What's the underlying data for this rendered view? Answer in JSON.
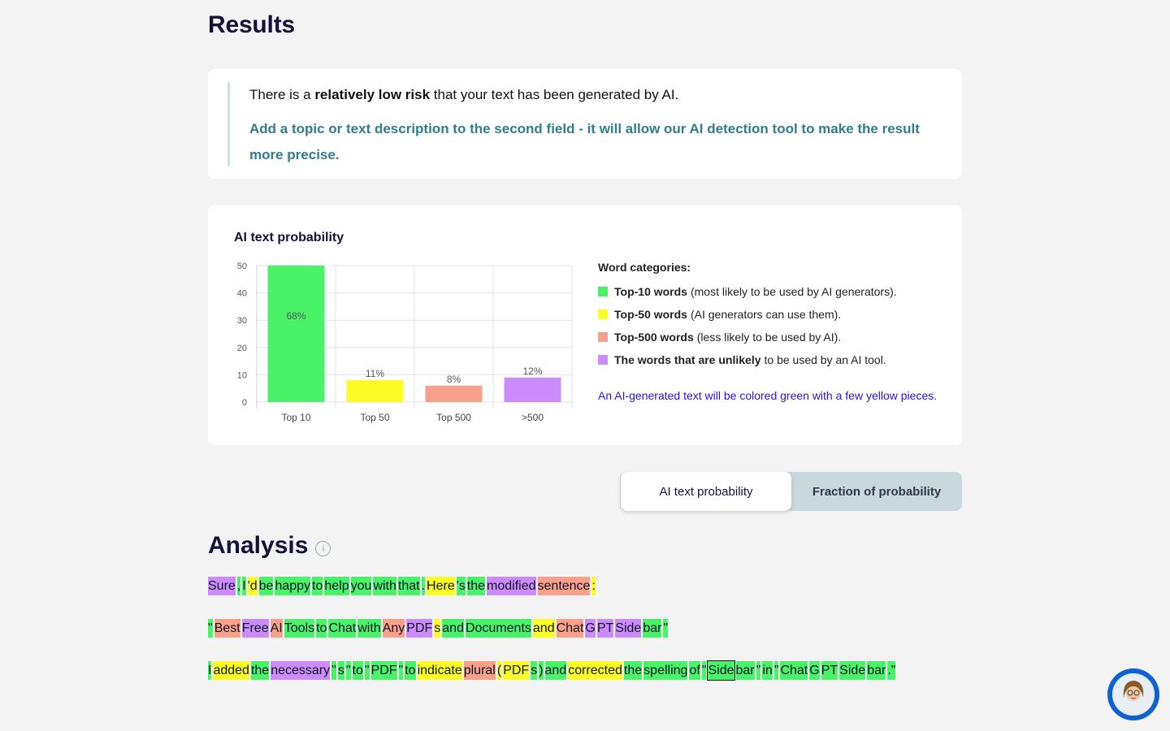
{
  "results_title": "Results",
  "risk": {
    "pre": "There is a ",
    "bold": "relatively low risk",
    "post": " that your text has been generated by AI.",
    "hint": "Add a topic or text description to the second field - it will allow our AI detection tool to make the result more precise."
  },
  "chart_data": {
    "type": "bar",
    "title": "AI text probability",
    "categories": [
      "Top 10",
      "Top 50",
      "Top 500",
      ">500"
    ],
    "values": [
      50,
      8,
      6,
      9
    ],
    "labels": [
      "68%",
      "11%",
      "8%",
      "12%"
    ],
    "colors": [
      "#4af26a",
      "#fbfb25",
      "#f9a08a",
      "#cc8bfb"
    ],
    "ylim": [
      0,
      50
    ],
    "yticks": [
      0,
      10,
      20,
      30,
      40,
      50
    ]
  },
  "legend": {
    "title": "Word categories:",
    "items": [
      {
        "bold": "Top-10 words",
        "text": "(most likely to be used by AI generators).",
        "color": "#4af26a"
      },
      {
        "bold": "Top-50 words",
        "text": "(AI generators can use them).",
        "color": "#fbfb25"
      },
      {
        "bold": "Top-500 words",
        "text": "(less likely to be used by AI).",
        "color": "#f9a08a"
      },
      {
        "bold": "The words that are unlikely",
        "text": "to be used by an AI tool.",
        "color": "#cc8bfb"
      }
    ],
    "note": "An AI-generated text will be colored green with a few yellow pieces."
  },
  "toggle": {
    "option1": "AI text probability",
    "option2": "Fraction of probability"
  },
  "analysis_title": "Analysis",
  "info_symbol": "i",
  "paragraphs": [
    [
      [
        "Sure",
        "p"
      ],
      [
        ",",
        "g"
      ],
      [
        "I",
        "g"
      ],
      [
        "'d",
        "y"
      ],
      [
        "be",
        "g"
      ],
      [
        "happy",
        "g"
      ],
      [
        "to",
        "g"
      ],
      [
        "help",
        "g"
      ],
      [
        "you",
        "g"
      ],
      [
        "with",
        "g"
      ],
      [
        "that",
        "g"
      ],
      [
        ".",
        "g"
      ],
      [
        "Here",
        "y"
      ],
      [
        "'s",
        "g"
      ],
      [
        "the",
        "g"
      ],
      [
        "modified",
        "p"
      ],
      [
        "sentence",
        "r"
      ],
      [
        ":",
        "y"
      ]
    ],
    [
      [
        "\"",
        "g"
      ],
      [
        "Best",
        "r"
      ],
      [
        "Free",
        "p"
      ],
      [
        "AI",
        "r"
      ],
      [
        "Tools",
        "g"
      ],
      [
        "to",
        "g"
      ],
      [
        "Chat",
        "g"
      ],
      [
        "with",
        "g"
      ],
      [
        "Any",
        "r"
      ],
      [
        "PDF",
        "p"
      ],
      [
        "s",
        "y"
      ],
      [
        "and",
        "g"
      ],
      [
        "Documents",
        "g"
      ],
      [
        "and",
        "y"
      ],
      [
        "Chat",
        "r"
      ],
      [
        "G",
        "p"
      ],
      [
        "PT",
        "p"
      ],
      [
        "Side",
        "p"
      ],
      [
        "bar",
        "g"
      ],
      [
        "\"",
        "g"
      ]
    ],
    [
      [
        "I",
        "g"
      ],
      [
        "added",
        "y"
      ],
      [
        "the",
        "g"
      ],
      [
        "necessary",
        "p"
      ],
      [
        "\"",
        "g"
      ],
      [
        "s",
        "g"
      ],
      [
        "\"",
        "g"
      ],
      [
        "to",
        "g"
      ],
      [
        "\"",
        "g"
      ],
      [
        "PDF",
        "g"
      ],
      [
        "\"",
        "g"
      ],
      [
        "to",
        "g"
      ],
      [
        "indicate",
        "y"
      ],
      [
        "plural",
        "r"
      ],
      [
        "(",
        "y"
      ],
      [
        "PDF",
        "y"
      ],
      [
        "s",
        "g"
      ],
      [
        ")",
        "g"
      ],
      [
        "and",
        "g"
      ],
      [
        "corrected",
        "y"
      ],
      [
        "the",
        "g"
      ],
      [
        "spelling",
        "g"
      ],
      [
        "of",
        "g"
      ],
      [
        "\"",
        "g"
      ],
      [
        "Side",
        "g"
      ],
      [
        "bar",
        "g"
      ],
      [
        "\"",
        "g"
      ],
      [
        "in",
        "g"
      ],
      [
        "\"",
        "g"
      ],
      [
        "Chat",
        "g"
      ],
      [
        "G",
        "g"
      ],
      [
        "PT",
        "g"
      ],
      [
        "Side",
        "g"
      ],
      [
        "bar",
        "g"
      ],
      [
        ".\"",
        "g"
      ]
    ]
  ]
}
